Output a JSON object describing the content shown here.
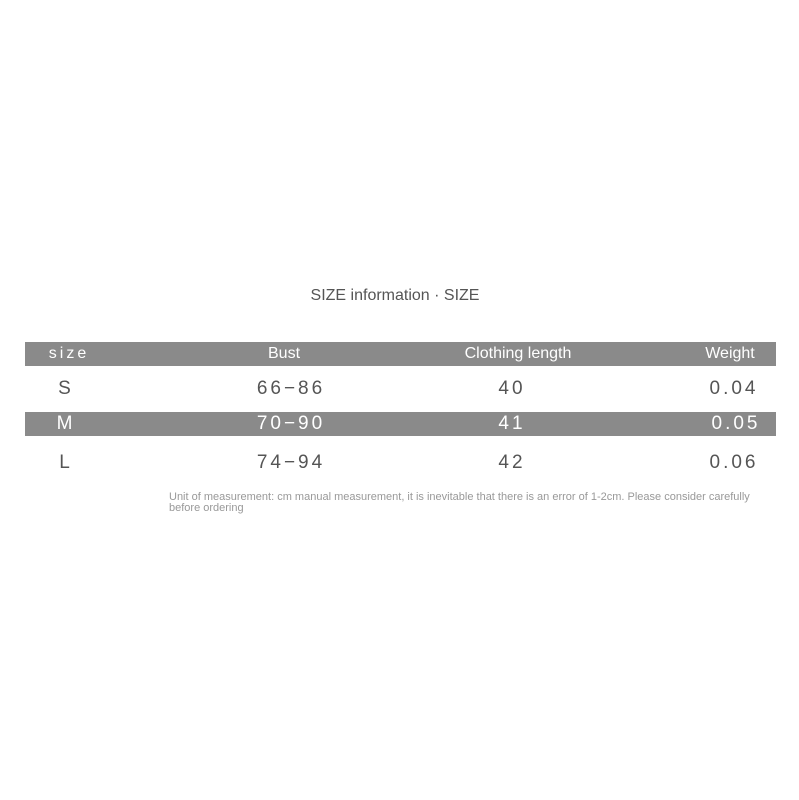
{
  "header": {
    "title": "SIZE information · SIZE"
  },
  "table": {
    "columns": [
      "size",
      "Bust",
      "Clothing length",
      "Weight"
    ],
    "rows": [
      [
        "S",
        "66−86",
        "40",
        "0.04"
      ],
      [
        "M",
        "70−90",
        "41",
        "0.05"
      ],
      [
        "L",
        "74−94",
        "42",
        "0.06"
      ]
    ]
  },
  "footnote": "Unit of measurement: cm manual measurement, it is inevitable that there is an error of 1-2cm. Please consider carefully before ordering"
}
